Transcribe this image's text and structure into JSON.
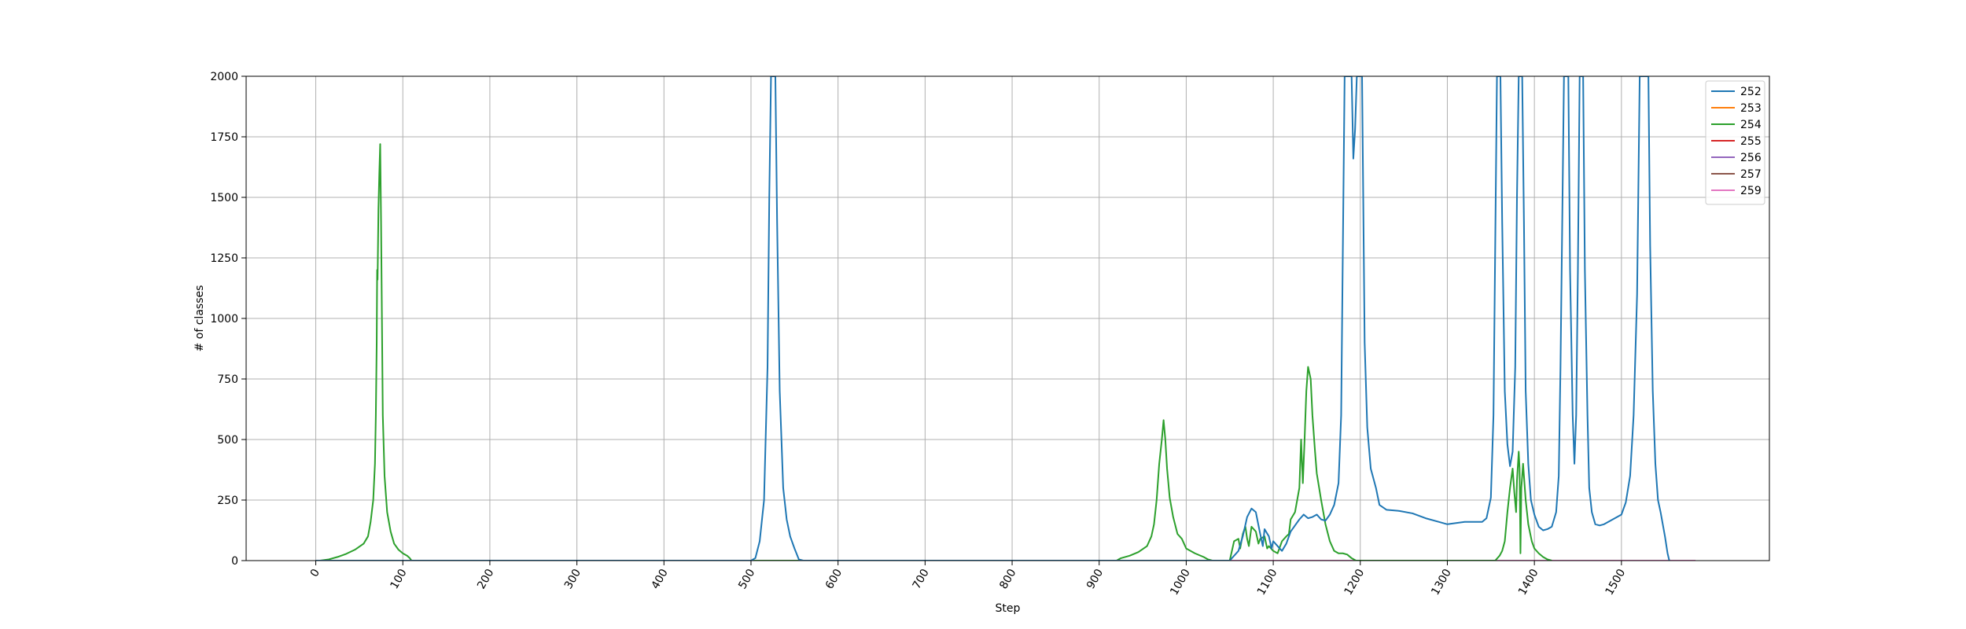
{
  "chart_data": {
    "type": "line",
    "title": "",
    "xlabel": "Step",
    "ylabel": "# of classes",
    "xlim": [
      -80,
      1670
    ],
    "ylim": [
      0,
      2000
    ],
    "grid": true,
    "legend_position": "top-right",
    "x_ticks": [
      0,
      100,
      200,
      300,
      400,
      500,
      600,
      700,
      800,
      900,
      1000,
      1100,
      1200,
      1300,
      1400,
      1500
    ],
    "y_ticks": [
      0,
      250,
      500,
      750,
      1000,
      1250,
      1500,
      1750,
      2000
    ],
    "series": [
      {
        "name": "252",
        "color": "#1f77b4",
        "points": [
          [
            0,
            0
          ],
          [
            500,
            0
          ],
          [
            505,
            10
          ],
          [
            510,
            80
          ],
          [
            515,
            250
          ],
          [
            519,
            800
          ],
          [
            521,
            1500
          ],
          [
            523,
            2000
          ],
          [
            528,
            2000
          ],
          [
            530,
            1400
          ],
          [
            533,
            700
          ],
          [
            537,
            300
          ],
          [
            541,
            170
          ],
          [
            545,
            100
          ],
          [
            550,
            50
          ],
          [
            555,
            5
          ],
          [
            560,
            0
          ],
          [
            1050,
            0
          ],
          [
            1060,
            40
          ],
          [
            1065,
            100
          ],
          [
            1070,
            180
          ],
          [
            1075,
            215
          ],
          [
            1080,
            200
          ],
          [
            1085,
            110
          ],
          [
            1088,
            60
          ],
          [
            1090,
            130
          ],
          [
            1095,
            100
          ],
          [
            1098,
            50
          ],
          [
            1100,
            80
          ],
          [
            1105,
            60
          ],
          [
            1110,
            40
          ],
          [
            1115,
            70
          ],
          [
            1120,
            120
          ],
          [
            1130,
            170
          ],
          [
            1135,
            190
          ],
          [
            1140,
            175
          ],
          [
            1145,
            180
          ],
          [
            1150,
            190
          ],
          [
            1155,
            170
          ],
          [
            1160,
            165
          ],
          [
            1165,
            190
          ],
          [
            1170,
            230
          ],
          [
            1175,
            320
          ],
          [
            1178,
            600
          ],
          [
            1180,
            1300
          ],
          [
            1182,
            2000
          ],
          [
            1190,
            2000
          ],
          [
            1192,
            1660
          ],
          [
            1194,
            1780
          ],
          [
            1196,
            2000
          ],
          [
            1202,
            2000
          ],
          [
            1205,
            900
          ],
          [
            1208,
            550
          ],
          [
            1212,
            380
          ],
          [
            1218,
            300
          ],
          [
            1222,
            230
          ],
          [
            1230,
            210
          ],
          [
            1245,
            205
          ],
          [
            1260,
            195
          ],
          [
            1275,
            175
          ],
          [
            1290,
            160
          ],
          [
            1300,
            150
          ],
          [
            1310,
            155
          ],
          [
            1320,
            160
          ],
          [
            1330,
            160
          ],
          [
            1340,
            160
          ],
          [
            1345,
            175
          ],
          [
            1350,
            260
          ],
          [
            1353,
            600
          ],
          [
            1355,
            1300
          ],
          [
            1357,
            2000
          ],
          [
            1361,
            2000
          ],
          [
            1363,
            1400
          ],
          [
            1366,
            700
          ],
          [
            1369,
            480
          ],
          [
            1372,
            390
          ],
          [
            1375,
            450
          ],
          [
            1378,
            800
          ],
          [
            1380,
            1500
          ],
          [
            1382,
            2000
          ],
          [
            1386,
            2000
          ],
          [
            1388,
            1400
          ],
          [
            1390,
            700
          ],
          [
            1393,
            400
          ],
          [
            1396,
            250
          ],
          [
            1400,
            190
          ],
          [
            1405,
            140
          ],
          [
            1410,
            125
          ],
          [
            1415,
            130
          ],
          [
            1420,
            140
          ],
          [
            1425,
            200
          ],
          [
            1428,
            350
          ],
          [
            1430,
            800
          ],
          [
            1432,
            1400
          ],
          [
            1434,
            2000
          ],
          [
            1439,
            2000
          ],
          [
            1441,
            1200
          ],
          [
            1444,
            600
          ],
          [
            1446,
            400
          ],
          [
            1448,
            600
          ],
          [
            1450,
            1200
          ],
          [
            1452,
            2000
          ],
          [
            1456,
            2000
          ],
          [
            1458,
            1200
          ],
          [
            1461,
            600
          ],
          [
            1463,
            300
          ],
          [
            1466,
            200
          ],
          [
            1470,
            150
          ],
          [
            1475,
            145
          ],
          [
            1480,
            150
          ],
          [
            1490,
            170
          ],
          [
            1500,
            190
          ],
          [
            1505,
            240
          ],
          [
            1510,
            350
          ],
          [
            1514,
            600
          ],
          [
            1518,
            1100
          ],
          [
            1521,
            2000
          ],
          [
            1531,
            2000
          ],
          [
            1533,
            1300
          ],
          [
            1536,
            700
          ],
          [
            1539,
            400
          ],
          [
            1542,
            250
          ],
          [
            1545,
            200
          ],
          [
            1550,
            100
          ],
          [
            1553,
            30
          ],
          [
            1555,
            0
          ]
        ]
      },
      {
        "name": "253",
        "color": "#ff7f0e",
        "points": [
          [
            0,
            0
          ],
          [
            1585,
            0
          ]
        ]
      },
      {
        "name": "254",
        "color": "#2ca02c",
        "points": [
          [
            0,
            0
          ],
          [
            5,
            0
          ],
          [
            15,
            5
          ],
          [
            25,
            15
          ],
          [
            35,
            28
          ],
          [
            45,
            45
          ],
          [
            55,
            70
          ],
          [
            60,
            100
          ],
          [
            63,
            160
          ],
          [
            66,
            250
          ],
          [
            68,
            400
          ],
          [
            69,
            600
          ],
          [
            70,
            900
          ],
          [
            70.5,
            1200
          ],
          [
            71,
            1160
          ],
          [
            72,
            1450
          ],
          [
            73,
            1600
          ],
          [
            74,
            1720
          ],
          [
            75,
            1400
          ],
          [
            76,
            1000
          ],
          [
            77,
            600
          ],
          [
            79,
            350
          ],
          [
            82,
            200
          ],
          [
            86,
            120
          ],
          [
            90,
            70
          ],
          [
            95,
            45
          ],
          [
            100,
            30
          ],
          [
            105,
            20
          ],
          [
            108,
            10
          ],
          [
            110,
            0
          ],
          [
            920,
            0
          ],
          [
            925,
            10
          ],
          [
            935,
            20
          ],
          [
            945,
            35
          ],
          [
            955,
            60
          ],
          [
            960,
            100
          ],
          [
            963,
            150
          ],
          [
            966,
            250
          ],
          [
            969,
            400
          ],
          [
            972,
            500
          ],
          [
            974,
            580
          ],
          [
            976,
            500
          ],
          [
            978,
            380
          ],
          [
            981,
            260
          ],
          [
            985,
            180
          ],
          [
            990,
            110
          ],
          [
            995,
            90
          ],
          [
            1000,
            50
          ],
          [
            1010,
            30
          ],
          [
            1020,
            15
          ],
          [
            1025,
            5
          ],
          [
            1030,
            0
          ],
          [
            1050,
            0
          ],
          [
            1055,
            80
          ],
          [
            1060,
            90
          ],
          [
            1062,
            50
          ],
          [
            1065,
            110
          ],
          [
            1068,
            140
          ],
          [
            1070,
            90
          ],
          [
            1072,
            60
          ],
          [
            1075,
            140
          ],
          [
            1080,
            120
          ],
          [
            1083,
            70
          ],
          [
            1085,
            90
          ],
          [
            1090,
            100
          ],
          [
            1093,
            50
          ],
          [
            1095,
            60
          ],
          [
            1100,
            40
          ],
          [
            1105,
            30
          ],
          [
            1110,
            80
          ],
          [
            1115,
            100
          ],
          [
            1118,
            110
          ],
          [
            1120,
            170
          ],
          [
            1125,
            200
          ],
          [
            1130,
            300
          ],
          [
            1132,
            500
          ],
          [
            1134,
            320
          ],
          [
            1136,
            500
          ],
          [
            1138,
            700
          ],
          [
            1140,
            800
          ],
          [
            1143,
            750
          ],
          [
            1145,
            600
          ],
          [
            1148,
            450
          ],
          [
            1150,
            360
          ],
          [
            1155,
            250
          ],
          [
            1160,
            150
          ],
          [
            1165,
            80
          ],
          [
            1170,
            40
          ],
          [
            1175,
            30
          ],
          [
            1180,
            30
          ],
          [
            1185,
            25
          ],
          [
            1190,
            10
          ],
          [
            1195,
            0
          ],
          [
            1355,
            0
          ],
          [
            1360,
            20
          ],
          [
            1363,
            40
          ],
          [
            1366,
            80
          ],
          [
            1369,
            200
          ],
          [
            1372,
            300
          ],
          [
            1375,
            380
          ],
          [
            1377,
            280
          ],
          [
            1379,
            200
          ],
          [
            1380,
            330
          ],
          [
            1382,
            450
          ],
          [
            1383,
            380
          ],
          [
            1384,
            30
          ],
          [
            1385,
            300
          ],
          [
            1387,
            400
          ],
          [
            1390,
            250
          ],
          [
            1393,
            150
          ],
          [
            1397,
            80
          ],
          [
            1400,
            50
          ],
          [
            1405,
            30
          ],
          [
            1410,
            15
          ],
          [
            1415,
            5
          ],
          [
            1420,
            0
          ]
        ]
      },
      {
        "name": "255",
        "color": "#d62728",
        "points": [
          [
            0,
            0
          ],
          [
            1585,
            0
          ]
        ]
      },
      {
        "name": "256",
        "color": "#9467bd",
        "points": [
          [
            0,
            0
          ],
          [
            1585,
            0
          ]
        ]
      },
      {
        "name": "257",
        "color": "#8c564b",
        "points": [
          [
            0,
            0
          ],
          [
            1585,
            0
          ]
        ]
      },
      {
        "name": "259",
        "color": "#e377c2",
        "points": [
          [
            0,
            0
          ],
          [
            1585,
            0
          ]
        ]
      }
    ]
  }
}
